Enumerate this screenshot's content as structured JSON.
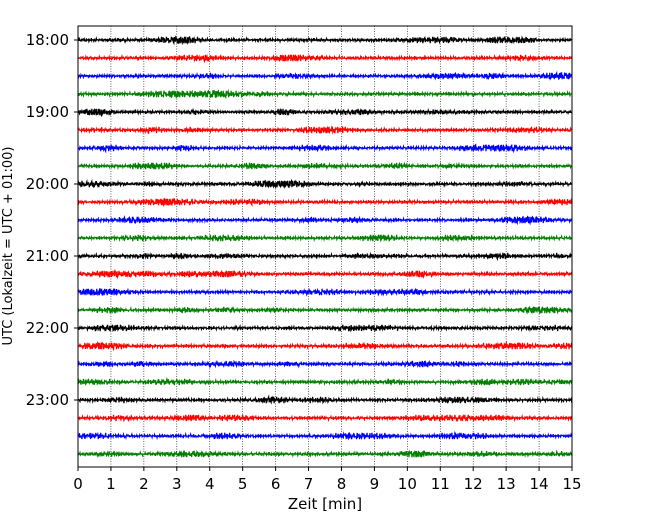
{
  "chart_data": {
    "type": "line",
    "title": "",
    "xlabel": "Zeit  [min]",
    "ylabel": "UTC (Lokalzeit = UTC + 01:00)",
    "xlim": [
      0,
      15
    ],
    "x_ticks": [
      0,
      1,
      2,
      3,
      4,
      5,
      6,
      7,
      8,
      9,
      10,
      11,
      12,
      13,
      14,
      15
    ],
    "y_tick_labels": [
      "18:00",
      "19:00",
      "20:00",
      "21:00",
      "22:00",
      "23:00"
    ],
    "grid": "vertical-dotted",
    "trace_interval_min": 15,
    "trace_colors": [
      "#000000",
      "#ff0000",
      "#0000ff",
      "#007f00"
    ],
    "series": [
      {
        "start": "18:00",
        "values": []
      },
      {
        "start": "18:15",
        "values": []
      },
      {
        "start": "18:30",
        "values": []
      },
      {
        "start": "18:45",
        "values": []
      },
      {
        "start": "19:00",
        "values": []
      },
      {
        "start": "19:15",
        "values": []
      },
      {
        "start": "19:30",
        "values": []
      },
      {
        "start": "19:45",
        "values": []
      },
      {
        "start": "20:00",
        "values": []
      },
      {
        "start": "20:15",
        "values": []
      },
      {
        "start": "20:30",
        "values": []
      },
      {
        "start": "20:45",
        "values": []
      },
      {
        "start": "21:00",
        "values": []
      },
      {
        "start": "21:15",
        "values": []
      },
      {
        "start": "21:30",
        "values": []
      },
      {
        "start": "21:45",
        "values": []
      },
      {
        "start": "22:00",
        "values": []
      },
      {
        "start": "22:15",
        "values": []
      },
      {
        "start": "22:30",
        "values": []
      },
      {
        "start": "22:45",
        "values": []
      },
      {
        "start": "23:00",
        "values": []
      },
      {
        "start": "23:15",
        "values": []
      },
      {
        "start": "23:30",
        "values": []
      },
      {
        "start": "23:45",
        "values": []
      }
    ]
  }
}
